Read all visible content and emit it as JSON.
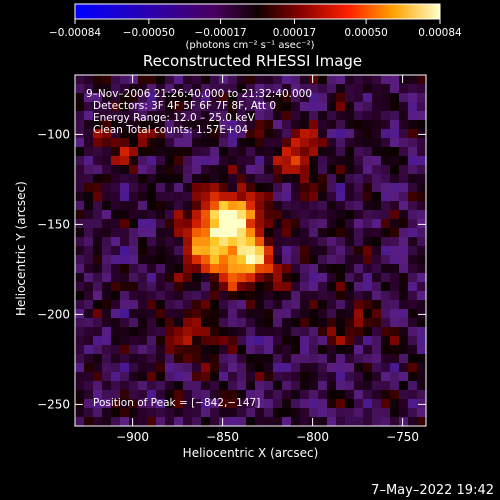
{
  "chart_data": {
    "type": "heatmap",
    "title": "Reconstructed RHESSI Image",
    "xlabel": "Heliocentric X (arcsec)",
    "ylabel": "Heliocentric Y (arcsec)",
    "xlim": [
      -932,
      -737
    ],
    "ylim": [
      -262,
      -67
    ],
    "x_ticks": [
      -900,
      -850,
      -800,
      -750
    ],
    "x_tick_labels": [
      "−900",
      "−850",
      "−800",
      "−750"
    ],
    "y_ticks": [
      -100,
      -150,
      -200,
      -250
    ],
    "y_tick_labels": [
      "−100",
      "−150",
      "−200",
      "−250"
    ],
    "colorbar": {
      "range": [
        -0.00084,
        0.00084
      ],
      "ticks": [
        -0.00084,
        -0.0005,
        -0.00017,
        0.00017,
        0.0005,
        0.00084
      ],
      "tick_labels": [
        "−0.00084",
        "−0.00050",
        "−0.00017",
        "0.00017",
        "0.00050",
        "0.00084"
      ],
      "units_label": "(photons cm⁻² s⁻¹ asec⁻²)"
    },
    "annotations": {
      "time_range": "9–Nov–2006 21:26:40.000 to 21:32:40.000",
      "detectors": "Detectors: 3F 4F 5F 6F 7F 8F, Att 0",
      "energy": "Energy Range: 12.0 – 25.0 keV",
      "clean": "Clean     Total counts: 1.57E+04",
      "peak": "Position of Peak = [−842,−147]"
    },
    "peak": [
      -842,
      -147
    ],
    "sources": [
      {
        "x": -844,
        "y": -148,
        "sigma_x": 11,
        "sigma_y": 12,
        "amp": 1.0
      },
      {
        "x": -838,
        "y": -172,
        "sigma_x": 12,
        "sigma_y": 9,
        "amp": 0.8
      },
      {
        "x": -862,
        "y": -160,
        "sigma_x": 9,
        "sigma_y": 14,
        "amp": 0.5
      },
      {
        "x": -808,
        "y": -112,
        "sigma_x": 9,
        "sigma_y": 11,
        "amp": 0.45
      },
      {
        "x": -868,
        "y": -212,
        "sigma_x": 12,
        "sigma_y": 9,
        "amp": 0.35
      },
      {
        "x": -905,
        "y": -105,
        "sigma_x": 10,
        "sigma_y": 10,
        "amp": 0.3
      },
      {
        "x": -782,
        "y": -205,
        "sigma_x": 14,
        "sigma_y": 8,
        "amp": 0.2
      }
    ]
  },
  "footer": {
    "timestamp": "7–May–2022 19:42"
  }
}
